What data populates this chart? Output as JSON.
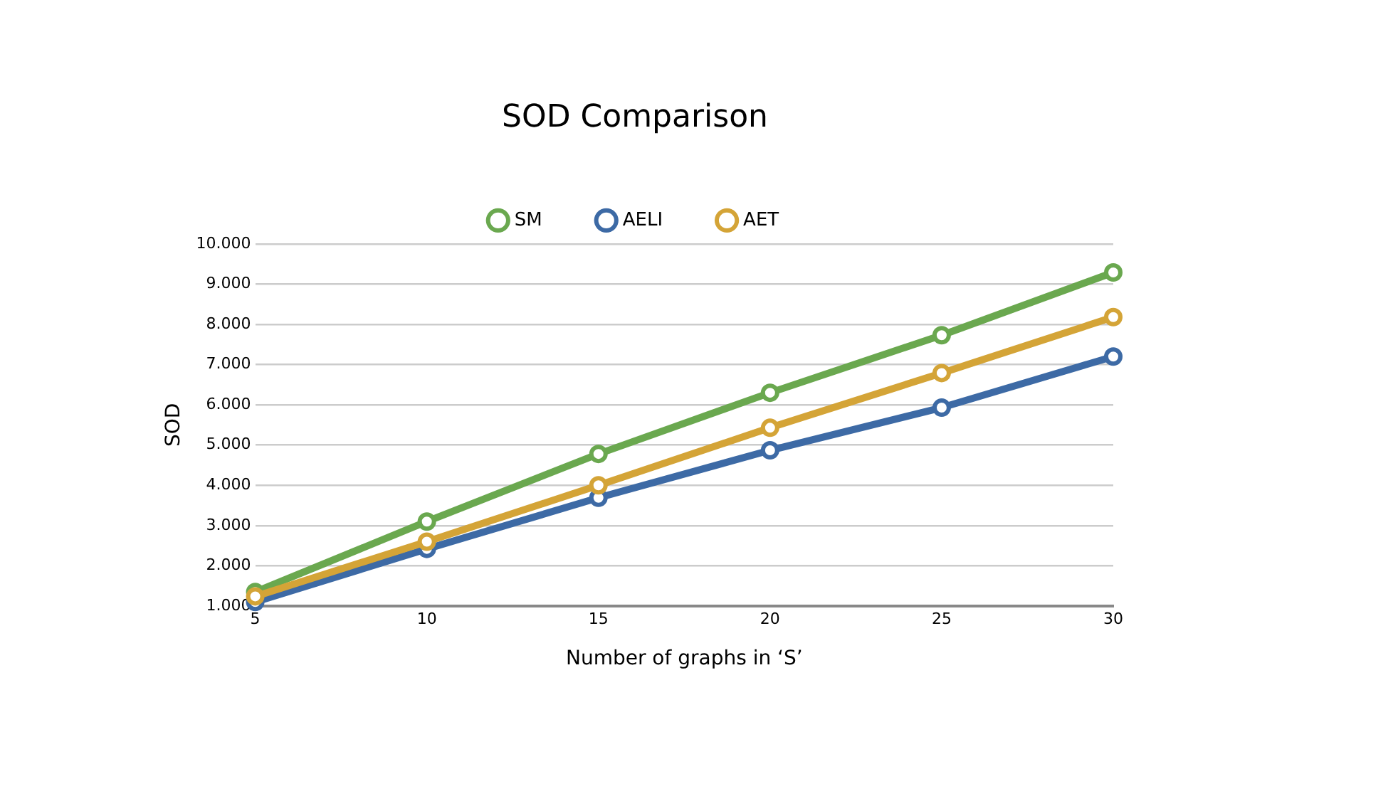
{
  "chart_data": {
    "type": "line",
    "title": "SOD Comparison",
    "xlabel": "Number of graphs in ‘S’",
    "ylabel": "SOD",
    "x": [
      5,
      10,
      15,
      20,
      25,
      30
    ],
    "series": [
      {
        "name": "SM",
        "color": "#6aa84f",
        "values": [
          1350,
          3100,
          4780,
          6300,
          7730,
          9290
        ]
      },
      {
        "name": "AELI",
        "color": "#3d6aa5",
        "values": [
          1100,
          2420,
          3690,
          4870,
          5930,
          7200
        ]
      },
      {
        "name": "AET",
        "color": "#d4a437",
        "values": [
          1240,
          2600,
          4000,
          5430,
          6790,
          8180
        ]
      }
    ],
    "xlim": [
      5,
      30
    ],
    "xticks": [
      5,
      10,
      15,
      20,
      25,
      30
    ],
    "ylim": [
      1000,
      10000
    ],
    "yticks": [
      {
        "value": 1000,
        "label": "1.000"
      },
      {
        "value": 2000,
        "label": "2.000"
      },
      {
        "value": 3000,
        "label": "3.000"
      },
      {
        "value": 4000,
        "label": "4.000"
      },
      {
        "value": 5000,
        "label": "5.000"
      },
      {
        "value": 6000,
        "label": "6.000"
      },
      {
        "value": 7000,
        "label": "7.000"
      },
      {
        "value": 8000,
        "label": "8.000"
      },
      {
        "value": 9000,
        "label": "9.000"
      },
      {
        "value": 10000,
        "label": "10.000"
      }
    ],
    "grid": "y",
    "legend": "top",
    "marker": "circle",
    "line_style": "solid"
  }
}
